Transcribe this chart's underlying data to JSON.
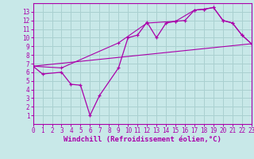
{
  "xlabel": "Windchill (Refroidissement éolien,°C)",
  "xlim": [
    0,
    23
  ],
  "ylim": [
    0,
    14
  ],
  "xticks": [
    0,
    1,
    2,
    3,
    4,
    5,
    6,
    7,
    8,
    9,
    10,
    11,
    12,
    13,
    14,
    15,
    16,
    17,
    18,
    19,
    20,
    21,
    22,
    23
  ],
  "yticks": [
    1,
    2,
    3,
    4,
    5,
    6,
    7,
    8,
    9,
    10,
    11,
    12,
    13
  ],
  "bg_color": "#c8e8e8",
  "line_color": "#aa00aa",
  "grid_color": "#aad0d0",
  "line1_x": [
    0,
    1,
    3,
    4,
    5,
    6,
    7,
    9,
    10,
    11,
    12,
    13,
    14,
    15,
    16,
    17,
    18,
    19,
    20,
    21,
    22,
    23
  ],
  "line1_y": [
    6.7,
    5.8,
    6.0,
    4.6,
    4.5,
    1.0,
    3.3,
    6.5,
    10.0,
    10.3,
    11.8,
    10.0,
    11.7,
    11.9,
    12.0,
    13.2,
    13.3,
    13.5,
    12.0,
    11.7,
    10.3,
    9.3
  ],
  "line2_x": [
    0,
    3,
    9,
    12,
    15,
    17,
    18,
    19,
    20,
    21,
    22,
    23
  ],
  "line2_y": [
    6.7,
    6.5,
    9.4,
    11.7,
    11.9,
    13.2,
    13.3,
    13.5,
    12.0,
    11.7,
    10.3,
    9.3
  ],
  "line3_x": [
    0,
    23
  ],
  "line3_y": [
    6.7,
    9.3
  ],
  "tick_fontsize": 5.5,
  "label_fontsize": 6.5
}
